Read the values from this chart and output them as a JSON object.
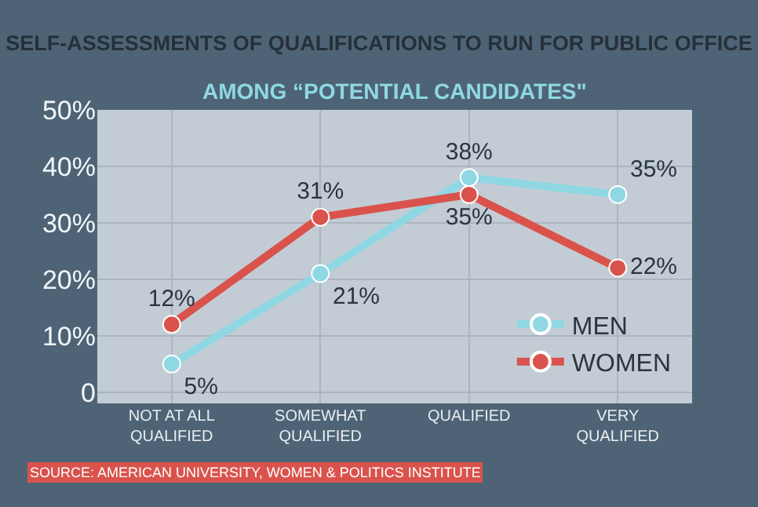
{
  "chart_data": {
    "type": "line",
    "title": "SELF-ASSESSMENTS OF QUALIFICATIONS TO RUN FOR PUBLIC OFFICE",
    "subtitle": "AMONG “POTENTIAL CANDIDATES\"",
    "categories": [
      "NOT AT ALL\nQUALIFIED",
      "SOMEWHAT\nQUALIFIED",
      "QUALIFIED",
      "VERY\nQUALIFIED"
    ],
    "series": [
      {
        "name": "MEN",
        "color": "#8fd8e3",
        "values": [
          5,
          21,
          38,
          35
        ],
        "value_labels": [
          "5%",
          "21%",
          "38%",
          "35%"
        ]
      },
      {
        "name": "WOMEN",
        "color": "#d9534c",
        "values": [
          12,
          31,
          35,
          22
        ],
        "value_labels": [
          "12%",
          "31%",
          "35%",
          "22%"
        ]
      }
    ],
    "ylim": [
      -2,
      50
    ],
    "yticks": [
      {
        "value": 0,
        "label": "0"
      },
      {
        "value": 10,
        "label": "10%"
      },
      {
        "value": 20,
        "label": "20%"
      },
      {
        "value": 30,
        "label": "30%"
      },
      {
        "value": 40,
        "label": "40%"
      },
      {
        "value": 50,
        "label": "50%"
      }
    ],
    "grid": true,
    "legend": "bottom right",
    "marker": "circle",
    "line_style": "solid",
    "annotations": [
      "SOURCE: AMERICAN UNIVERSITY, WOMEN & POLITICS INSTITUTE"
    ]
  }
}
